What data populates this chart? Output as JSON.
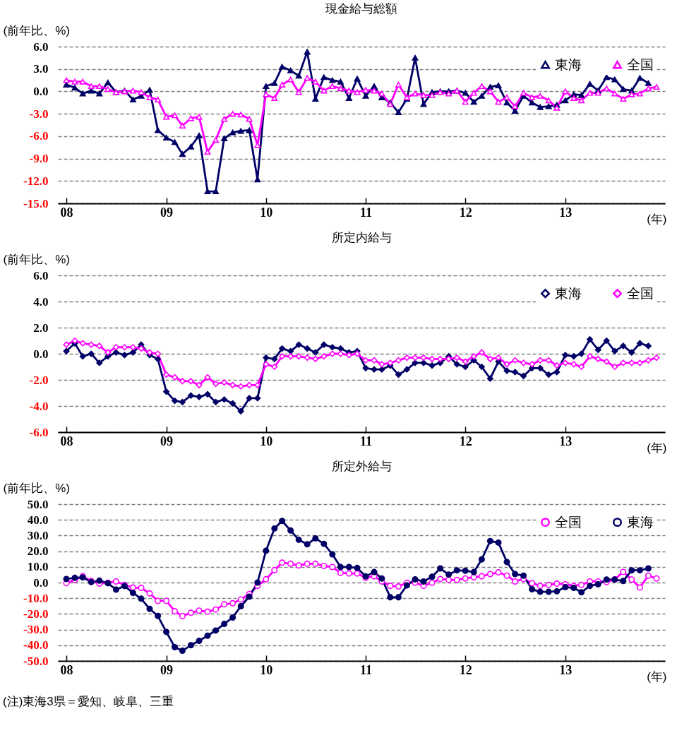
{
  "chart_data": [
    {
      "type": "line",
      "title": "現金給与総額",
      "ylabel": "(前年比、%)",
      "xlabel": "(年)",
      "grid": "y",
      "legend": "top right",
      "marker": "triangle",
      "x": [
        "2008-01",
        "2008-02",
        "2008-03",
        "2008-04",
        "2008-05",
        "2008-06",
        "2008-07",
        "2008-08",
        "2008-09",
        "2008-10",
        "2008-11",
        "2008-12",
        "2009-01",
        "2009-02",
        "2009-03",
        "2009-04",
        "2009-05",
        "2009-06",
        "2009-07",
        "2009-08",
        "2009-09",
        "2009-10",
        "2009-11",
        "2009-12",
        "2010-01",
        "2010-02",
        "2010-03",
        "2010-04",
        "2010-05",
        "2010-06",
        "2010-07",
        "2010-08",
        "2010-09",
        "2010-10",
        "2010-11",
        "2010-12",
        "2011-01",
        "2011-02",
        "2011-03",
        "2011-04",
        "2011-05",
        "2011-06",
        "2011-07",
        "2011-08",
        "2011-09",
        "2011-10",
        "2011-11",
        "2011-12",
        "2012-01",
        "2012-02",
        "2012-03",
        "2012-04",
        "2012-05",
        "2012-06",
        "2012-07",
        "2012-08",
        "2012-09",
        "2012-10",
        "2012-11",
        "2012-12",
        "2013-01",
        "2013-02",
        "2013-03",
        "2013-04",
        "2013-05",
        "2013-06",
        "2013-07",
        "2013-08",
        "2013-09",
        "2013-10",
        "2013-11",
        "2013-12"
      ],
      "xlim": [
        "2007-12",
        "2014-01"
      ],
      "xticks": [
        {
          "value": "2008-01",
          "label": "08"
        },
        {
          "value": "2009-01",
          "label": "09"
        },
        {
          "value": "2010-01",
          "label": "10"
        },
        {
          "value": "2011-01",
          "label": "11"
        },
        {
          "value": "2012-01",
          "label": "12"
        },
        {
          "value": "2013-01",
          "label": "13"
        }
      ],
      "ylim": [
        -15,
        6
      ],
      "yticks": [
        {
          "value": -15,
          "label": "-15.0"
        },
        {
          "value": -12,
          "label": "-12.0"
        },
        {
          "value": -9,
          "label": "-9.0"
        },
        {
          "value": -6,
          "label": "-6.0"
        },
        {
          "value": -3,
          "label": "-3.0"
        },
        {
          "value": 0,
          "label": "0.0"
        },
        {
          "value": 3,
          "label": "3.0"
        },
        {
          "value": 6,
          "label": "6.0"
        }
      ],
      "series": [
        {
          "name": "東海",
          "color": "#000066",
          "values": [
            0.9,
            0.5,
            -0.3,
            0.1,
            -0.3,
            1.2,
            -0.1,
            0.1,
            -1.1,
            -0.6,
            0.2,
            -5.2,
            -6.2,
            -6.8,
            -8.4,
            -7.4,
            -5.9,
            -13.4,
            -13.4,
            -6.3,
            -5.5,
            -5.3,
            -5.2,
            -11.8,
            0.7,
            1.1,
            3.3,
            2.8,
            2.1,
            5.3,
            -1.0,
            1.9,
            1.5,
            1.3,
            -0.9,
            1.7,
            -0.6,
            0.7,
            -0.8,
            -1.5,
            -2.8,
            -1.0,
            4.5,
            -1.7,
            -0.1,
            0,
            0,
            0.1,
            -0.2,
            -1.4,
            -0.6,
            0.6,
            0.8,
            -1.5,
            -2.6,
            -0.6,
            -1.5,
            -2.1,
            -2.0,
            -1.8,
            -1.2,
            -0.4,
            -0.5,
            1.0,
            0.1,
            1.9,
            1.6,
            0.3,
            0.1,
            1.8,
            1.1,
            null
          ]
        },
        {
          "name": "全国",
          "color": "#ff00ff",
          "values": [
            1.5,
            1.3,
            1.3,
            0.7,
            0.7,
            0.3,
            -0.1,
            0,
            0.1,
            -0.1,
            -0.8,
            -1.1,
            -3.4,
            -3.2,
            -4.6,
            -3.6,
            -3.4,
            -8.1,
            -6.5,
            -3.7,
            -3.0,
            -3.1,
            -3.7,
            -7.2,
            -0.4,
            -0.9,
            0.9,
            1.6,
            -0.1,
            1.8,
            1.3,
            0.1,
            0.7,
            0.4,
            0.1,
            -0.1,
            0.2,
            0.1,
            -0.3,
            -1.7,
            0.9,
            -0.8,
            -0.3,
            -0.5,
            -0.5,
            -0.1,
            -0.3,
            0.1,
            -1.4,
            -0.2,
            0.7,
            0,
            -1.4,
            -0.8,
            -2.0,
            -0.2,
            -0.8,
            -0.6,
            -1.2,
            -2.2,
            0,
            -0.9,
            -1.2,
            -0.2,
            -0.2,
            0.4,
            -0.3,
            -1.0,
            -0.4,
            -0.3,
            0.4,
            0.6
          ]
        }
      ]
    },
    {
      "type": "line",
      "title": "所定内給与",
      "ylabel": "(前年比、%)",
      "xlabel": "(年)",
      "grid": "y",
      "legend": "top right",
      "marker": "diamond",
      "x": [
        "2008-01",
        "2008-02",
        "2008-03",
        "2008-04",
        "2008-05",
        "2008-06",
        "2008-07",
        "2008-08",
        "2008-09",
        "2008-10",
        "2008-11",
        "2008-12",
        "2009-01",
        "2009-02",
        "2009-03",
        "2009-04",
        "2009-05",
        "2009-06",
        "2009-07",
        "2009-08",
        "2009-09",
        "2009-10",
        "2009-11",
        "2009-12",
        "2010-01",
        "2010-02",
        "2010-03",
        "2010-04",
        "2010-05",
        "2010-06",
        "2010-07",
        "2010-08",
        "2010-09",
        "2010-10",
        "2010-11",
        "2010-12",
        "2011-01",
        "2011-02",
        "2011-03",
        "2011-04",
        "2011-05",
        "2011-06",
        "2011-07",
        "2011-08",
        "2011-09",
        "2011-10",
        "2011-11",
        "2011-12",
        "2012-01",
        "2012-02",
        "2012-03",
        "2012-04",
        "2012-05",
        "2012-06",
        "2012-07",
        "2012-08",
        "2012-09",
        "2012-10",
        "2012-11",
        "2012-12",
        "2013-01",
        "2013-02",
        "2013-03",
        "2013-04",
        "2013-05",
        "2013-06",
        "2013-07",
        "2013-08",
        "2013-09",
        "2013-10",
        "2013-11",
        "2013-12"
      ],
      "xlim": [
        "2007-12",
        "2014-01"
      ],
      "xticks": [
        {
          "value": "2008-01",
          "label": "08"
        },
        {
          "value": "2009-01",
          "label": "09"
        },
        {
          "value": "2010-01",
          "label": "10"
        },
        {
          "value": "2011-01",
          "label": "11"
        },
        {
          "value": "2012-01",
          "label": "12"
        },
        {
          "value": "2013-01",
          "label": "13"
        }
      ],
      "ylim": [
        -6,
        6
      ],
      "yticks": [
        {
          "value": -6,
          "label": "-6.0"
        },
        {
          "value": -4,
          "label": "-4.0"
        },
        {
          "value": -2,
          "label": "-2.0"
        },
        {
          "value": 0,
          "label": "0.0"
        },
        {
          "value": 2,
          "label": "2.0"
        },
        {
          "value": 4,
          "label": "4.0"
        },
        {
          "value": 6,
          "label": "6.0"
        }
      ],
      "series": [
        {
          "name": "東海",
          "color": "#000066",
          "values": [
            0.2,
            0.8,
            -0.2,
            0,
            -0.7,
            -0.2,
            0.1,
            -0.1,
            0.1,
            0.7,
            -0.1,
            -0.4,
            -2.9,
            -3.6,
            -3.7,
            -3.2,
            -3.3,
            -3.1,
            -3.7,
            -3.5,
            -3.8,
            -4.4,
            -3.4,
            -3.4,
            -0.3,
            -0.4,
            0.4,
            0.2,
            0.7,
            0.4,
            0.1,
            0.7,
            0.5,
            0.4,
            0.1,
            0.2,
            -1.1,
            -1.2,
            -1.2,
            -0.9,
            -1.6,
            -1.2,
            -0.7,
            -0.7,
            -0.9,
            -0.7,
            -0.2,
            -0.8,
            -1.0,
            -0.5,
            -1.0,
            -1.9,
            -0.6,
            -1.3,
            -1.4,
            -1.7,
            -1.1,
            -1.1,
            -1.6,
            -1.4,
            -0.1,
            -0.2,
            0,
            1.1,
            0.3,
            1.0,
            0.2,
            0.6,
            0.1,
            0.8,
            0.6,
            null
          ]
        },
        {
          "name": "全国",
          "color": "#ff00ff",
          "values": [
            0.7,
            1.0,
            0.8,
            0.7,
            0.6,
            0.1,
            0.5,
            0.5,
            0.5,
            0.4,
            0.1,
            0,
            -1.6,
            -1.8,
            -2.1,
            -2.1,
            -2.4,
            -1.8,
            -2.3,
            -2.2,
            -2.4,
            -2.5,
            -2.4,
            -2.4,
            -0.8,
            -1.0,
            -0.2,
            -0.2,
            -0.2,
            -0.3,
            -0.4,
            -0.2,
            0,
            0,
            -0.1,
            0,
            -0.5,
            -0.5,
            -0.8,
            -0.7,
            -0.5,
            -0.3,
            -0.3,
            -0.3,
            -0.4,
            -0.4,
            -0.4,
            -0.3,
            -0.6,
            -0.2,
            0.1,
            -0.4,
            -0.3,
            -0.8,
            -0.5,
            -0.7,
            -0.8,
            -0.5,
            -0.5,
            -0.9,
            -0.7,
            -0.8,
            -1.0,
            -0.2,
            -0.4,
            -0.6,
            -1.0,
            -0.7,
            -0.7,
            -0.7,
            -0.5,
            -0.3
          ]
        }
      ]
    },
    {
      "type": "line",
      "title": "所定外給与",
      "ylabel": "(前年比、%)",
      "xlabel": "(年)",
      "grid": "y",
      "legend": "top right",
      "marker": "circle",
      "annotations": [
        "(注)東海3県＝愛知、岐阜、三重"
      ],
      "x": [
        "2008-01",
        "2008-02",
        "2008-03",
        "2008-04",
        "2008-05",
        "2008-06",
        "2008-07",
        "2008-08",
        "2008-09",
        "2008-10",
        "2008-11",
        "2008-12",
        "2009-01",
        "2009-02",
        "2009-03",
        "2009-04",
        "2009-05",
        "2009-06",
        "2009-07",
        "2009-08",
        "2009-09",
        "2009-10",
        "2009-11",
        "2009-12",
        "2010-01",
        "2010-02",
        "2010-03",
        "2010-04",
        "2010-05",
        "2010-06",
        "2010-07",
        "2010-08",
        "2010-09",
        "2010-10",
        "2010-11",
        "2010-12",
        "2011-01",
        "2011-02",
        "2011-03",
        "2011-04",
        "2011-05",
        "2011-06",
        "2011-07",
        "2011-08",
        "2011-09",
        "2011-10",
        "2011-11",
        "2011-12",
        "2012-01",
        "2012-02",
        "2012-03",
        "2012-04",
        "2012-05",
        "2012-06",
        "2012-07",
        "2012-08",
        "2012-09",
        "2012-10",
        "2012-11",
        "2012-12",
        "2013-01",
        "2013-02",
        "2013-03",
        "2013-04",
        "2013-05",
        "2013-06",
        "2013-07",
        "2013-08",
        "2013-09",
        "2013-10",
        "2013-11",
        "2013-12"
      ],
      "xlim": [
        "2007-12",
        "2014-01"
      ],
      "xticks": [
        {
          "value": "2008-01",
          "label": "08"
        },
        {
          "value": "2009-01",
          "label": "09"
        },
        {
          "value": "2010-01",
          "label": "10"
        },
        {
          "value": "2011-01",
          "label": "11"
        },
        {
          "value": "2012-01",
          "label": "12"
        },
        {
          "value": "2013-01",
          "label": "13"
        }
      ],
      "ylim": [
        -50,
        50
      ],
      "yticks": [
        {
          "value": -50,
          "label": "-50.0"
        },
        {
          "value": -40,
          "label": "-40.0"
        },
        {
          "value": -30,
          "label": "-30.0"
        },
        {
          "value": -20,
          "label": "-20.0"
        },
        {
          "value": -10,
          "label": "-10.0"
        },
        {
          "value": 0,
          "label": "0.0"
        },
        {
          "value": 10,
          "label": "10.0"
        },
        {
          "value": 20,
          "label": "20.0"
        },
        {
          "value": 30,
          "label": "30.0"
        },
        {
          "value": 40,
          "label": "40.0"
        },
        {
          "value": 50,
          "label": "50.0"
        }
      ],
      "series": [
        {
          "name": "全国",
          "color": "#ff00ff",
          "values": [
            -0.4,
            1.7,
            4.0,
            1.0,
            -0.7,
            -0.1,
            0.7,
            -1.5,
            -3.2,
            -3.4,
            -6.9,
            -11.7,
            -11.7,
            -18.3,
            -21.4,
            -19.3,
            -17.9,
            -18.6,
            -17.2,
            -13.9,
            -13.2,
            -10.8,
            -7.3,
            -2.1,
            2.1,
            7.9,
            12.7,
            12.0,
            10.9,
            12.0,
            12.0,
            10.6,
            9.9,
            6.2,
            5.8,
            5.8,
            3.0,
            4.0,
            0.7,
            -2.1,
            -2.5,
            -0.1,
            -0.1,
            -2.1,
            -0.1,
            2.3,
            1.7,
            1.7,
            2.6,
            3.4,
            4.0,
            5.4,
            6.5,
            4.4,
            0.7,
            2.3,
            -0.4,
            -2.1,
            -1.5,
            -0.7,
            -1.1,
            -2.1,
            -1.5,
            0.7,
            0.7,
            0.3,
            2.0,
            6.8,
            1.9,
            -3.2,
            4.4,
            2.6
          ]
        },
        {
          "name": "東海",
          "color": "#000066",
          "values": [
            2.3,
            3.0,
            3.3,
            0.3,
            1.2,
            -0.4,
            -4.5,
            -2.2,
            -6.6,
            -10.3,
            -16.8,
            -21.3,
            -31.5,
            -41.2,
            -43.5,
            -40,
            -37.2,
            -33.9,
            -30.6,
            -26.4,
            -22.3,
            -15.1,
            -9.0,
            0,
            20.3,
            34.5,
            39.3,
            33.2,
            27.3,
            24.4,
            28.2,
            24.7,
            18,
            9.9,
            9.9,
            9.3,
            3.9,
            6.7,
            2.6,
            -9.4,
            -9.4,
            -1.8,
            2.0,
            0.7,
            3.7,
            9.0,
            5.1,
            7.8,
            7.5,
            6.7,
            14.8,
            26.5,
            25.5,
            13.1,
            5.4,
            4.4,
            -4.3,
            -5.9,
            -5.9,
            -5.6,
            -2.9,
            -3.4,
            -6.2,
            -2.1,
            -1.1,
            1.9,
            1.9,
            1.0,
            7.8,
            7.8,
            9.0,
            null
          ]
        }
      ]
    }
  ]
}
